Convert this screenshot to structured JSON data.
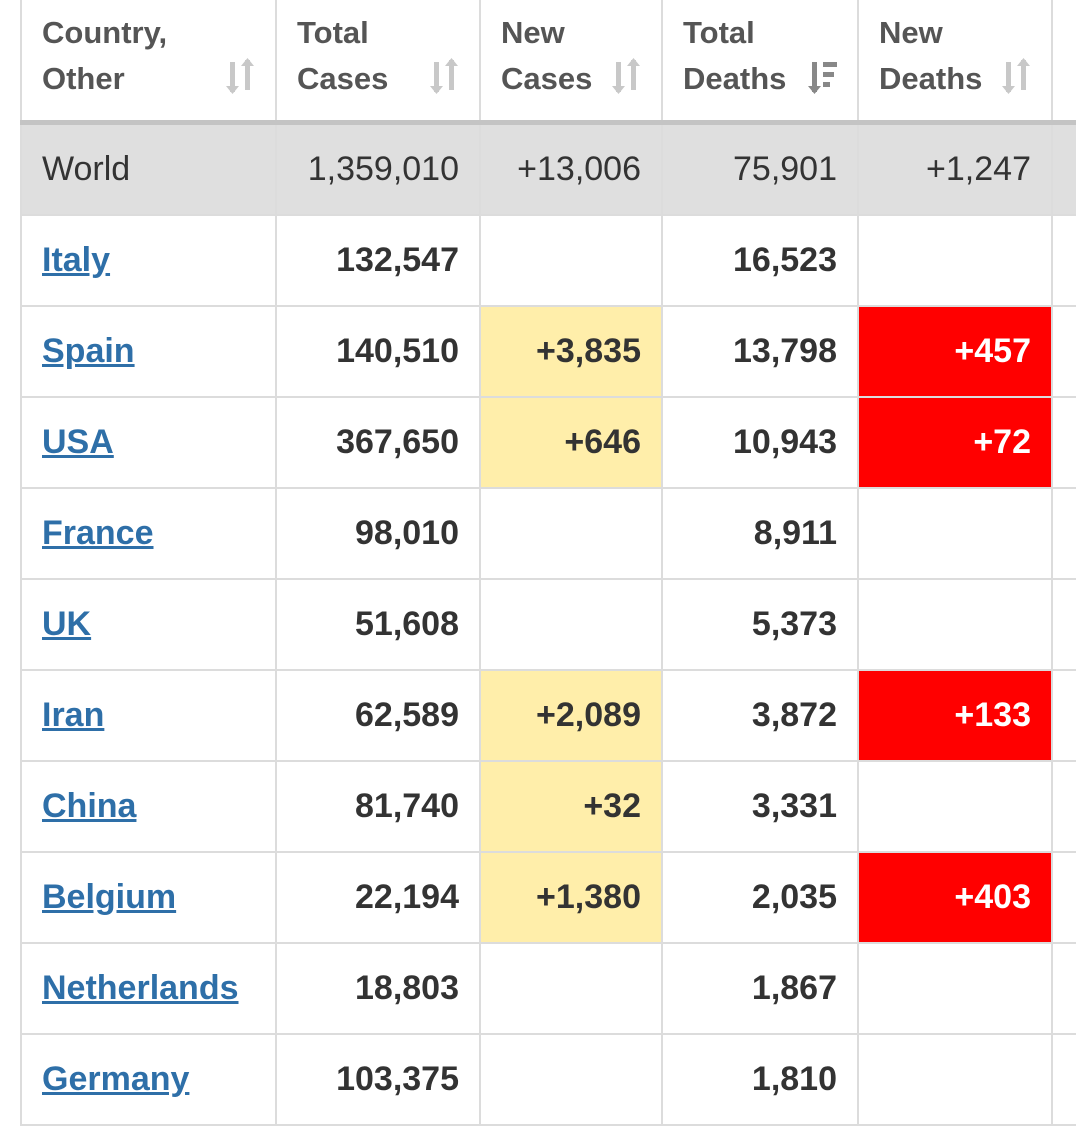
{
  "headers": {
    "country": "Country,\nOther",
    "total_cases": "Total\nCases",
    "new_cases": "New\nCases",
    "total_deaths": "Total\nDeaths",
    "new_deaths": "New\nDeaths"
  },
  "icons": {
    "sort_neutral": "sort-neutral-icon",
    "sort_desc_active": "sort-descending-icon"
  },
  "colors": {
    "link": "#2e6fa8",
    "new_cases_highlight": "#ffeeaa",
    "new_deaths_highlight": "#ff0000",
    "world_row": "#dfdfdf"
  },
  "world": {
    "name": "World",
    "total_cases": "1,359,010",
    "new_cases": "+13,006",
    "total_deaths": "75,901",
    "new_deaths": "+1,247"
  },
  "rows": [
    {
      "country": "Italy",
      "total_cases": "132,547",
      "new_cases": "",
      "total_deaths": "16,523",
      "new_deaths": ""
    },
    {
      "country": "Spain",
      "total_cases": "140,510",
      "new_cases": "+3,835",
      "total_deaths": "13,798",
      "new_deaths": "+457"
    },
    {
      "country": "USA",
      "total_cases": "367,650",
      "new_cases": "+646",
      "total_deaths": "10,943",
      "new_deaths": "+72"
    },
    {
      "country": "France",
      "total_cases": "98,010",
      "new_cases": "",
      "total_deaths": "8,911",
      "new_deaths": ""
    },
    {
      "country": "UK",
      "total_cases": "51,608",
      "new_cases": "",
      "total_deaths": "5,373",
      "new_deaths": ""
    },
    {
      "country": "Iran",
      "total_cases": "62,589",
      "new_cases": "+2,089",
      "total_deaths": "3,872",
      "new_deaths": "+133"
    },
    {
      "country": "China",
      "total_cases": "81,740",
      "new_cases": "+32",
      "total_deaths": "3,331",
      "new_deaths": ""
    },
    {
      "country": "Belgium",
      "total_cases": "22,194",
      "new_cases": "+1,380",
      "total_deaths": "2,035",
      "new_deaths": "+403"
    },
    {
      "country": "Netherlands",
      "total_cases": "18,803",
      "new_cases": "",
      "total_deaths": "1,867",
      "new_deaths": ""
    },
    {
      "country": "Germany",
      "total_cases": "103,375",
      "new_cases": "",
      "total_deaths": "1,810",
      "new_deaths": ""
    }
  ]
}
